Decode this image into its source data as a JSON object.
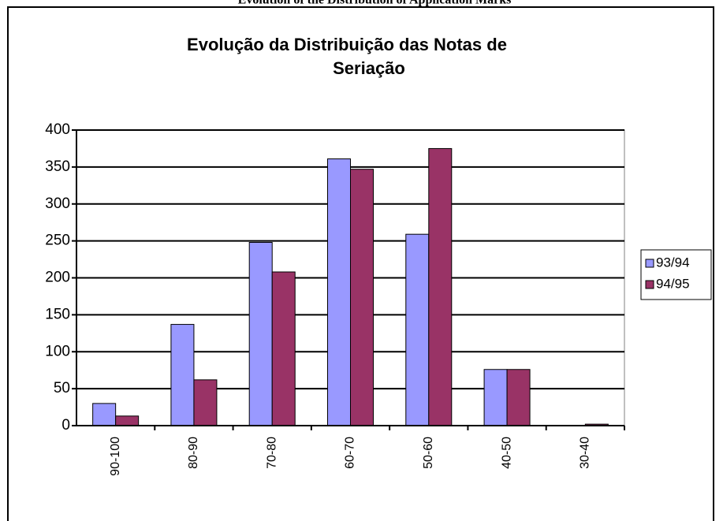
{
  "caption": "Evolution of the Distribution of Application Marks",
  "chart_data": {
    "type": "bar",
    "title": [
      "Evolução da Distribuição das Notas de",
      "Seriação"
    ],
    "categories": [
      "90-100",
      "80-90",
      "70-80",
      "60-70",
      "50-60",
      "40-50",
      "30-40"
    ],
    "series": [
      {
        "name": "93/94",
        "color": "#9999ff",
        "values": [
          30,
          137,
          248,
          361,
          259,
          76,
          0
        ]
      },
      {
        "name": "94/95",
        "color": "#993366",
        "values": [
          13,
          62,
          208,
          347,
          375,
          76,
          2
        ]
      }
    ],
    "ylim": [
      0,
      400
    ],
    "yticks": [
      0,
      50,
      100,
      150,
      200,
      250,
      300,
      350,
      400
    ],
    "grid": true,
    "legend": "right"
  }
}
